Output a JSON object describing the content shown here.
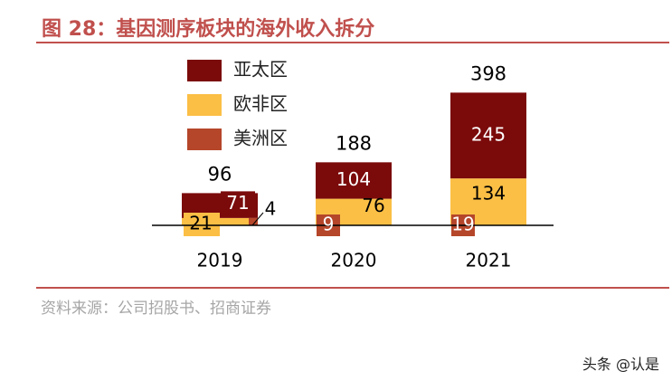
{
  "title": "图 28：基因测序板块的海外收入拆分",
  "source": "资料来源：公司招股书、招商证券",
  "watermark": "头条 @认是",
  "colors": {
    "title": "#c0504d",
    "asia_pacific": "#7b0a0a",
    "europe_africa": "#fbbf45",
    "americas": "#b5462a"
  },
  "chart_data": {
    "type": "bar",
    "stacked": true,
    "categories": [
      "2019",
      "2020",
      "2021"
    ],
    "series": [
      {
        "name": "亚太区",
        "values": [
          71,
          104,
          245
        ]
      },
      {
        "name": "欧非区",
        "values": [
          21,
          76,
          134
        ]
      },
      {
        "name": "美洲区",
        "values": [
          4,
          9,
          19
        ]
      }
    ],
    "totals": [
      96,
      188,
      398
    ],
    "legend": "top-left",
    "grid": false
  }
}
